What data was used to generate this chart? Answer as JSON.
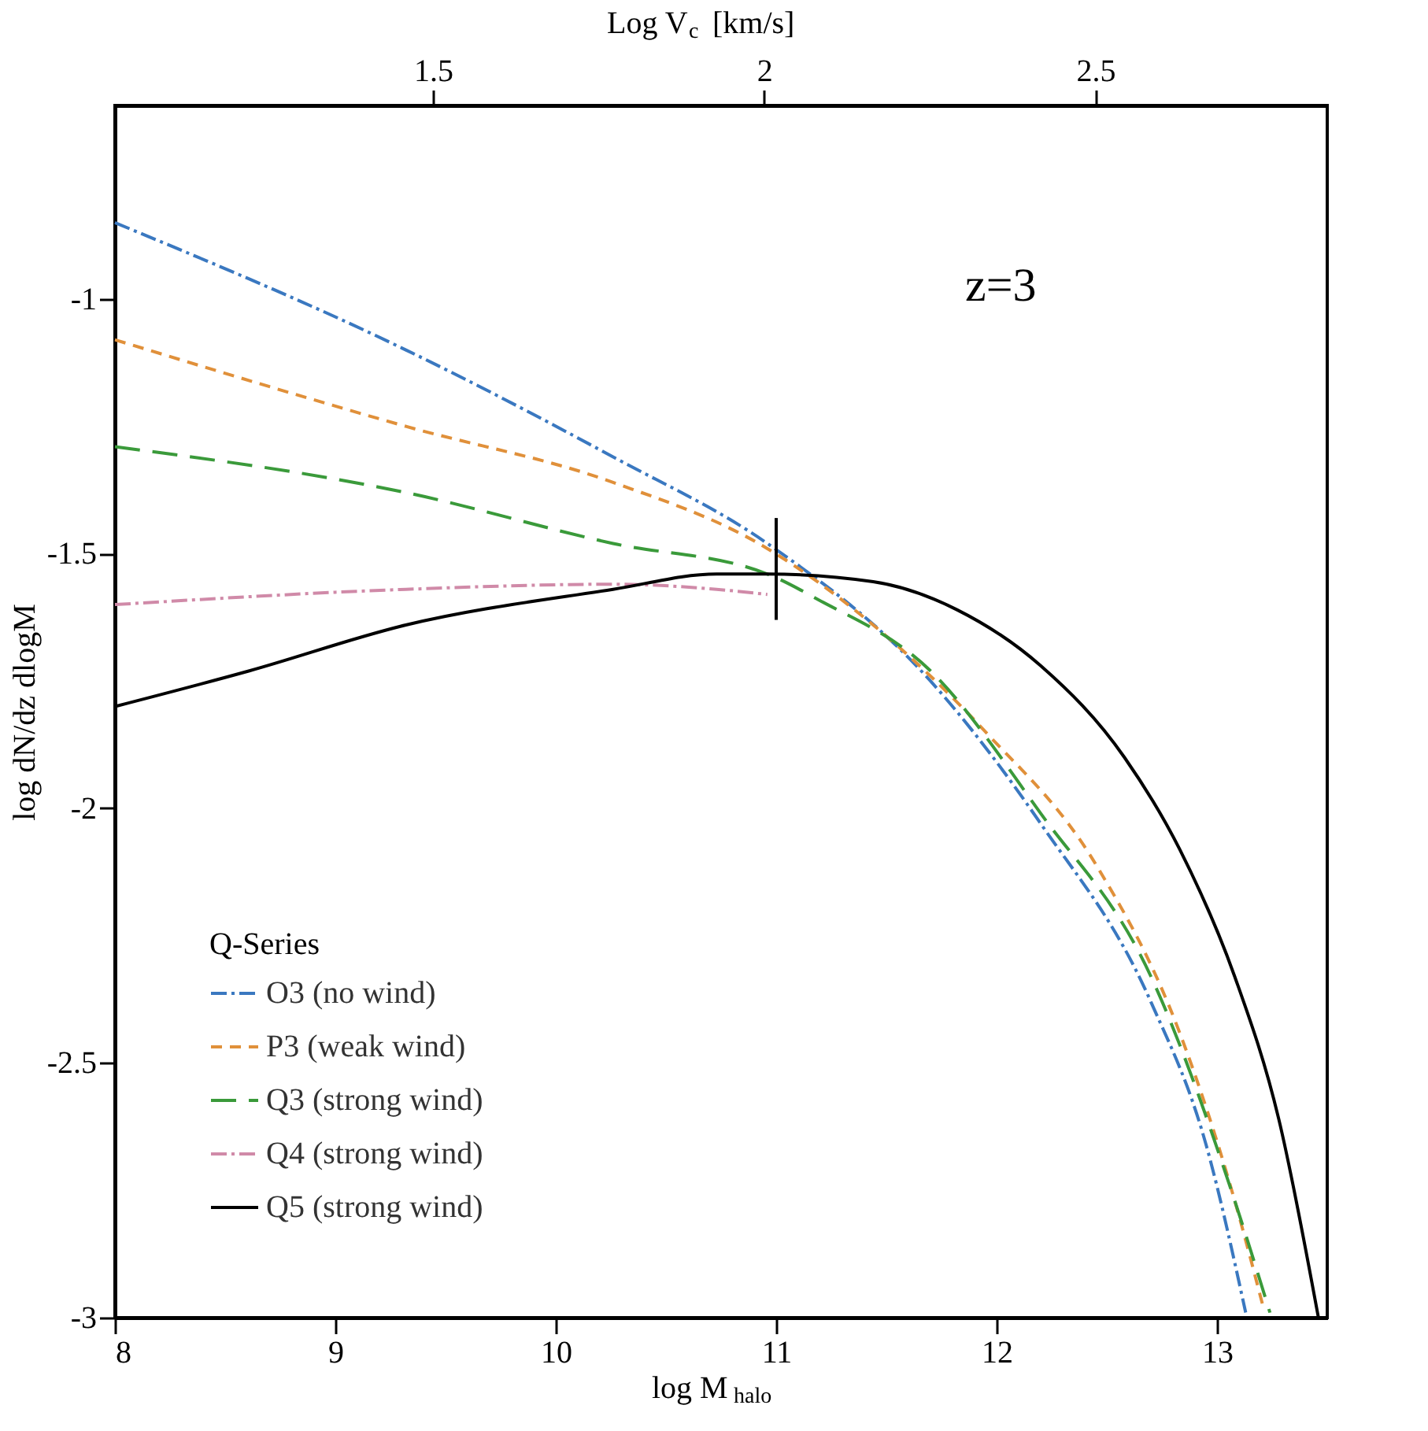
{
  "chart_data": {
    "type": "line",
    "xlabel": "log M$_{halo}$",
    "ylabel": "log dN/dz dlogM",
    "x2label": "Log V$_{c}$ [km/s]",
    "xlim": [
      8,
      13.5
    ],
    "xticks": [
      8,
      9,
      10,
      11,
      12,
      13
    ],
    "ylim": [
      -3,
      -0.62
    ],
    "yticks": [
      -3,
      -2.5,
      -2,
      -1.5,
      -1
    ],
    "x2lim": [
      1.02,
      2.85
    ],
    "x2ticks": [
      1.5,
      2,
      2.5
    ],
    "legend": "bottom left",
    "legend_title": "Q-Series",
    "grid": false,
    "marker": "none",
    "annotations": [
      "z=3"
    ],
    "series": [
      {
        "name": "O3 (no wind)",
        "color": "#3a78c0",
        "line_style": "dashdot",
        "x": [
          8,
          9.32,
          10.26,
          10.96,
          11.7,
          12.2,
          12.7,
          12.95,
          13.13
        ],
        "values": [
          -0.85,
          -1.1,
          -1.31,
          -1.48,
          -1.75,
          -2.03,
          -2.38,
          -2.66,
          -2.99
        ]
      },
      {
        "name": "P3 (weak wind)",
        "color": "#e0903a",
        "line_style": "dashed",
        "x": [
          8,
          9.32,
          10.26,
          10.96,
          11.44,
          11.95,
          12.45,
          12.83,
          13.08,
          13.21
        ],
        "values": [
          -1.08,
          -1.25,
          -1.36,
          -1.49,
          -1.64,
          -1.85,
          -2.11,
          -2.44,
          -2.77,
          -2.98
        ]
      },
      {
        "name": "Q3 (strong wind)",
        "color": "#3a9a3a",
        "line_style": "longdashed",
        "x": [
          8,
          9.32,
          10.26,
          10.96,
          11.19,
          11.7,
          12.2,
          12.7,
          13.08,
          13.24
        ],
        "values": [
          -1.29,
          -1.38,
          -1.48,
          -1.54,
          -1.59,
          -1.73,
          -2.01,
          -2.33,
          -2.77,
          -2.99
        ]
      },
      {
        "name": "Q4 (strong wind)",
        "color": "#d08aa8",
        "line_style": "dashdot",
        "x": [
          8,
          9.32,
          10.26,
          10.73,
          10.96
        ],
        "values": [
          -1.6,
          -1.57,
          -1.56,
          -1.57,
          -1.58
        ]
      },
      {
        "name": "Q5 (strong wind)",
        "color": "#000000",
        "line_style": "solid",
        "x": [
          8,
          8.61,
          9.32,
          10.26,
          10.73,
          10.96,
          11.44,
          11.82,
          12.2,
          12.58,
          12.83,
          13.08,
          13.28,
          13.46
        ],
        "values": [
          -1.8,
          -1.73,
          -1.64,
          -1.57,
          -1.54,
          -1.54,
          -1.555,
          -1.61,
          -1.72,
          -1.9,
          -2.08,
          -2.33,
          -2.61,
          -3.0
        ]
      },
      {
        "color": "#000000",
        "line_style": "solid",
        "x": [
          11,
          11
        ],
        "values": [
          -1.43,
          -1.63
        ]
      }
    ]
  }
}
